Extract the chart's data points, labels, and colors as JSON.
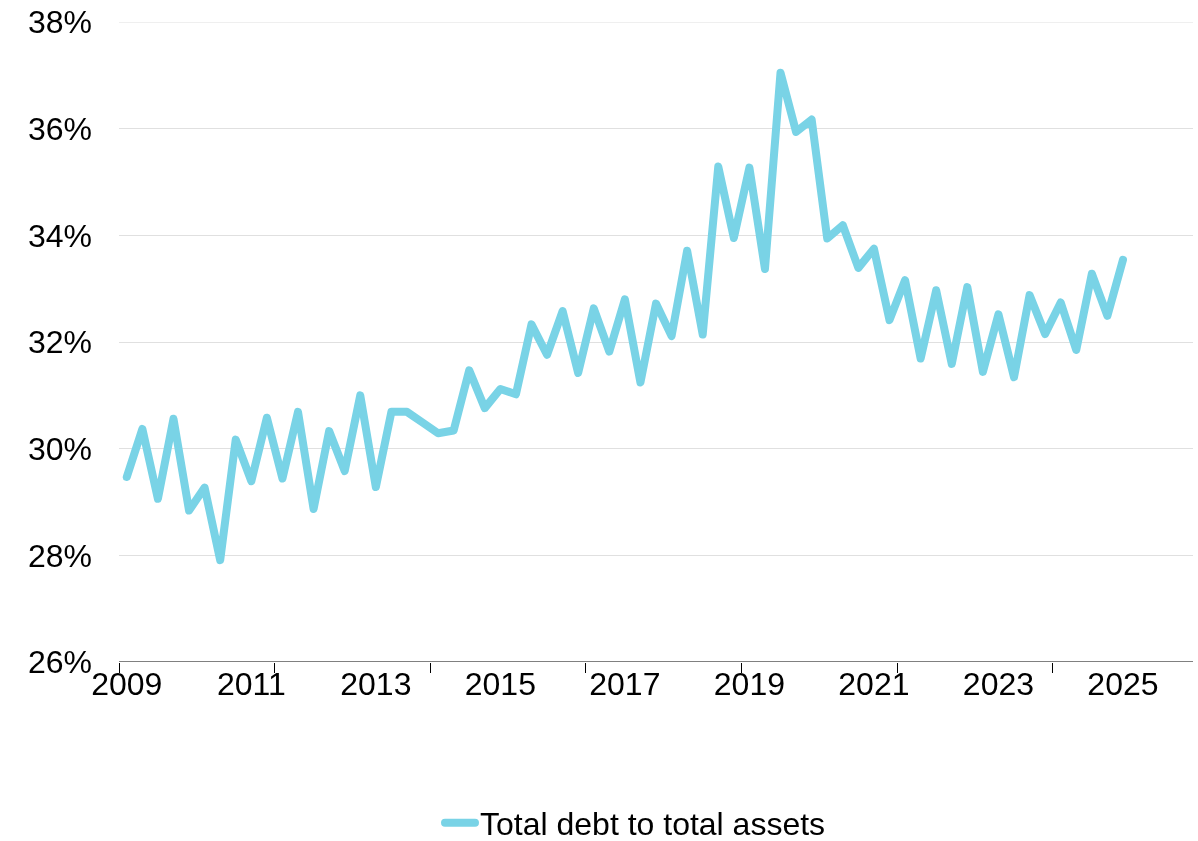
{
  "chart_data": {
    "type": "line",
    "x": [
      2009,
      2009.25,
      2009.5,
      2009.75,
      2010,
      2010.25,
      2010.5,
      2010.75,
      2011,
      2011.25,
      2011.5,
      2011.75,
      2012,
      2012.25,
      2012.5,
      2012.75,
      2013,
      2013.25,
      2013.5,
      2013.75,
      2014,
      2014.25,
      2014.5,
      2014.75,
      2015,
      2015.25,
      2015.5,
      2015.75,
      2016,
      2016.25,
      2016.5,
      2016.75,
      2017,
      2017.25,
      2017.5,
      2017.75,
      2018,
      2018.25,
      2018.5,
      2018.75,
      2019,
      2019.25,
      2019.5,
      2019.75,
      2020,
      2020.25,
      2020.5,
      2020.75,
      2021,
      2021.25,
      2021.5,
      2021.75,
      2022,
      2022.25,
      2022.5,
      2022.75,
      2023,
      2023.25,
      2023.5,
      2023.75,
      2024,
      2024.25,
      2024.5,
      2024.75,
      2025
    ],
    "series": [
      {
        "name": "Total debt to total assets",
        "color": "#79d3e6",
        "values": [
          29.47,
          30.37,
          29.06,
          30.56,
          28.84,
          29.27,
          27.91,
          30.17,
          29.39,
          30.58,
          29.44,
          30.69,
          28.87,
          30.33,
          29.58,
          31.0,
          29.28,
          30.69,
          30.69,
          30.49,
          30.29,
          30.34,
          31.47,
          30.76,
          31.12,
          31.02,
          32.33,
          31.76,
          32.58,
          31.42,
          32.63,
          31.82,
          32.8,
          31.24,
          32.72,
          32.11,
          33.71,
          32.14,
          35.29,
          33.95,
          35.27,
          33.37,
          37.05,
          35.94,
          36.17,
          33.94,
          34.19,
          33.39,
          33.75,
          32.41,
          33.16,
          31.69,
          32.97,
          31.59,
          33.03,
          31.44,
          32.52,
          31.34,
          32.88,
          32.15,
          32.74,
          31.85,
          33.28,
          32.49,
          33.54
        ]
      }
    ],
    "xlim": [
      2008.875,
      2026.125
    ],
    "xticks": [
      {
        "value": 2009,
        "label": "2009"
      },
      {
        "value": 2011,
        "label": "2011"
      },
      {
        "value": 2013,
        "label": "2013"
      },
      {
        "value": 2015,
        "label": "2015"
      },
      {
        "value": 2017,
        "label": "2017"
      },
      {
        "value": 2019,
        "label": "2019"
      },
      {
        "value": 2021,
        "label": "2021"
      },
      {
        "value": 2023,
        "label": "2023"
      },
      {
        "value": 2025,
        "label": "2025"
      },
      {
        "value": 2008.875,
        "label": null
      },
      {
        "value": 2011.375,
        "label": null
      },
      {
        "value": 2013.875,
        "label": null
      },
      {
        "value": 2016.375,
        "label": null
      },
      {
        "value": 2018.875,
        "label": null
      },
      {
        "value": 2021.375,
        "label": null
      },
      {
        "value": 2023.875,
        "label": null
      }
    ],
    "ylim": [
      26,
      38
    ],
    "yticks": [
      {
        "value": 26,
        "label": "26%"
      },
      {
        "value": 28,
        "label": "28%"
      },
      {
        "value": 30,
        "label": "30%"
      },
      {
        "value": 32,
        "label": "32%"
      },
      {
        "value": 34,
        "label": "34%"
      },
      {
        "value": 36,
        "label": "36%"
      },
      {
        "value": 38,
        "label": "38%"
      }
    ],
    "grid": "y",
    "legend": "bottom",
    "marker": "none",
    "line_style": "solid"
  }
}
